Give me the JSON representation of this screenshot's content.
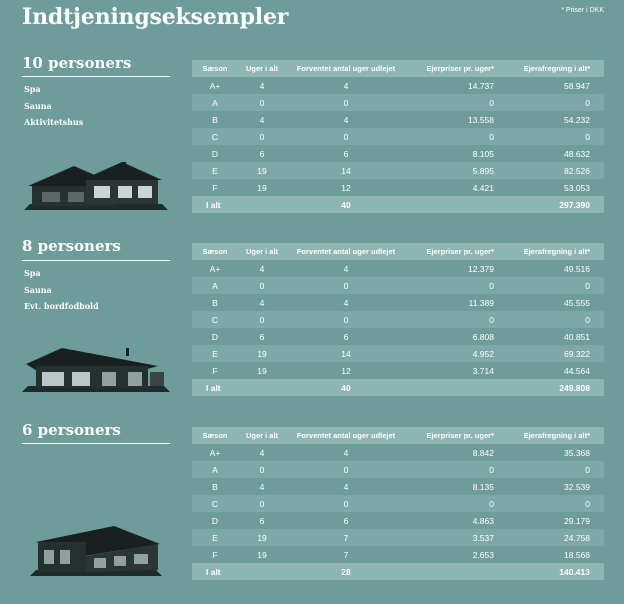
{
  "title": "Indtjeningseksempler",
  "price_note": "* Priser i DKK",
  "columns": [
    "Sæson",
    "Uger i alt",
    "Forventet antal uger udlejet",
    "Ejerpriser pr. uger*",
    "Ejerafregning i alt*"
  ],
  "sections": [
    {
      "heading": "10 personers",
      "features": [
        "Spa",
        "Sauna",
        "Aktivitetshus"
      ],
      "house_icon": "house-large-icon",
      "rows": [
        [
          "A+",
          "4",
          "4",
          "14.737",
          "58.947"
        ],
        [
          "A",
          "0",
          "0",
          "0",
          "0"
        ],
        [
          "B",
          "4",
          "4",
          "13.558",
          "54.232"
        ],
        [
          "C",
          "0",
          "0",
          "0",
          "0"
        ],
        [
          "D",
          "6",
          "6",
          "8.105",
          "48.632"
        ],
        [
          "E",
          "19",
          "14",
          "5.895",
          "82.526"
        ],
        [
          "F",
          "19",
          "12",
          "4.421",
          "53.053"
        ]
      ],
      "total": {
        "label": "I alt",
        "weeks": "40",
        "sum": "297.390"
      }
    },
    {
      "heading": "8 personers",
      "features": [
        "Spa",
        "Sauna",
        "Evt. bordfodbold"
      ],
      "house_icon": "house-medium-icon",
      "rows": [
        [
          "A+",
          "4",
          "4",
          "12.379",
          "49.516"
        ],
        [
          "A",
          "0",
          "0",
          "0",
          "0"
        ],
        [
          "B",
          "4",
          "4",
          "11.389",
          "45.555"
        ],
        [
          "C",
          "0",
          "0",
          "0",
          "0"
        ],
        [
          "D",
          "6",
          "6",
          "6.808",
          "40.851"
        ],
        [
          "E",
          "19",
          "14",
          "4.952",
          "69.322"
        ],
        [
          "F",
          "19",
          "12",
          "3.714",
          "44.564"
        ]
      ],
      "total": {
        "label": "I alt",
        "weeks": "40",
        "sum": "249.808"
      }
    },
    {
      "heading": "6 personers",
      "features": [],
      "house_icon": "house-small-icon",
      "rows": [
        [
          "A+",
          "4",
          "4",
          "8.842",
          "35.368"
        ],
        [
          "A",
          "0",
          "0",
          "0",
          "0"
        ],
        [
          "B",
          "4",
          "4",
          "8.135",
          "32.539"
        ],
        [
          "C",
          "0",
          "0",
          "0",
          "0"
        ],
        [
          "D",
          "6",
          "6",
          "4.863",
          "29.179"
        ],
        [
          "E",
          "19",
          "7",
          "3.537",
          "24.758"
        ],
        [
          "F",
          "19",
          "7",
          "2.653",
          "18.568"
        ]
      ],
      "total": {
        "label": "I alt",
        "weeks": "28",
        "sum": "140.413"
      }
    }
  ]
}
